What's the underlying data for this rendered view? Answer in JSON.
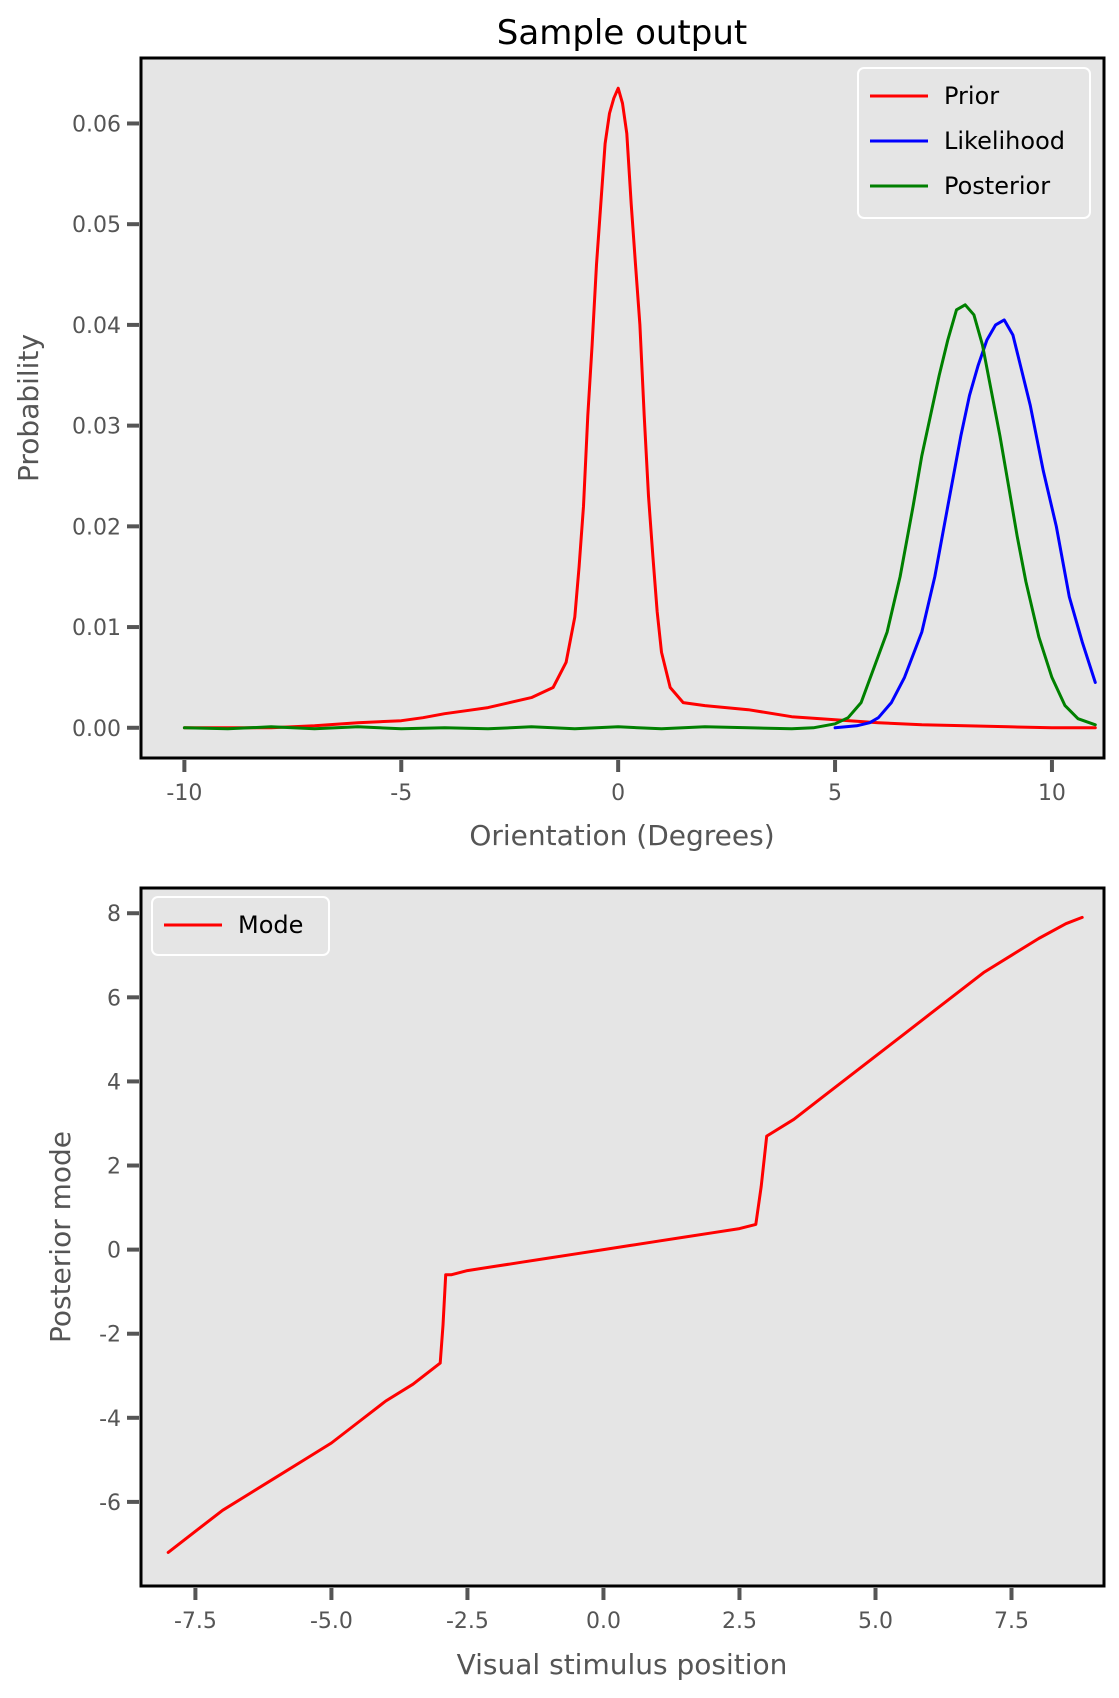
{
  "chart_data": [
    {
      "type": "line",
      "title": "Sample output",
      "xlabel": "Orientation (Degrees)",
      "ylabel": "Probability",
      "xlim": [
        -11,
        11.2
      ],
      "ylim": [
        -0.003,
        0.0665
      ],
      "xticks": [
        -10,
        -5,
        0,
        5,
        10
      ],
      "xtick_labels": [
        "-10",
        "-5",
        "0",
        "5",
        "10"
      ],
      "yticks": [
        0,
        0.01,
        0.02,
        0.03,
        0.04,
        0.05,
        0.06
      ],
      "ytick_labels": [
        "0.00",
        "0.01",
        "0.02",
        "0.03",
        "0.04",
        "0.05",
        "0.06"
      ],
      "grid": false,
      "legend_position": "top-right",
      "series": [
        {
          "name": "Prior",
          "color": "#ff0000",
          "x": [
            -10,
            -8,
            -7,
            -6,
            -5,
            -4.5,
            -4,
            -3.5,
            -3,
            -2.5,
            -2,
            -1.5,
            -1.2,
            -1,
            -0.9,
            -0.8,
            -0.7,
            -0.6,
            -0.5,
            -0.4,
            -0.3,
            -0.2,
            -0.1,
            0,
            0.1,
            0.2,
            0.3,
            0.4,
            0.5,
            0.6,
            0.7,
            0.8,
            0.9,
            1,
            1.2,
            1.5,
            2,
            3,
            4,
            5,
            6,
            7,
            8,
            9,
            10,
            11
          ],
          "y": [
            0,
            0,
            0.0002,
            0.0005,
            0.0007,
            0.001,
            0.0014,
            0.0017,
            0.002,
            0.0025,
            0.003,
            0.004,
            0.0065,
            0.011,
            0.016,
            0.022,
            0.031,
            0.038,
            0.046,
            0.052,
            0.058,
            0.061,
            0.0625,
            0.0635,
            0.062,
            0.059,
            0.052,
            0.046,
            0.04,
            0.031,
            0.023,
            0.017,
            0.0115,
            0.0075,
            0.004,
            0.0025,
            0.0022,
            0.0018,
            0.0011,
            0.0008,
            0.0005,
            0.0003,
            0.0002,
            0.0001,
            0,
            0
          ]
        },
        {
          "name": "Likelihood",
          "color": "#0000ff",
          "x": [
            5,
            5.5,
            5.8,
            6,
            6.3,
            6.6,
            7,
            7.3,
            7.6,
            7.9,
            8.1,
            8.3,
            8.5,
            8.7,
            8.9,
            9.1,
            9.3,
            9.5,
            9.8,
            10.1,
            10.4,
            10.7,
            11
          ],
          "y": [
            0,
            0.0002,
            0.0005,
            0.001,
            0.0025,
            0.005,
            0.0095,
            0.015,
            0.022,
            0.029,
            0.033,
            0.036,
            0.0385,
            0.04,
            0.0405,
            0.039,
            0.0355,
            0.032,
            0.0255,
            0.02,
            0.013,
            0.0085,
            0.0045
          ]
        },
        {
          "name": "Posterior",
          "color": "#008000",
          "x": [
            -10,
            -9,
            -8,
            -7,
            -6,
            -5,
            -4,
            -3,
            -2,
            -1,
            0,
            1,
            2,
            3,
            4,
            4.5,
            5,
            5.3,
            5.6,
            5.9,
            6.2,
            6.5,
            6.8,
            7,
            7.2,
            7.4,
            7.6,
            7.8,
            8,
            8.2,
            8.4,
            8.6,
            8.8,
            9,
            9.2,
            9.4,
            9.7,
            10,
            10.3,
            10.6,
            11
          ],
          "y": [
            0,
            -0.0001,
            0.0001,
            -0.0001,
            0.0001,
            -0.0001,
            0,
            -0.0001,
            0.0001,
            -0.0001,
            0.0001,
            -0.0001,
            0.0001,
            0,
            -0.0001,
            0,
            0.0004,
            0.001,
            0.0025,
            0.006,
            0.0095,
            0.015,
            0.022,
            0.027,
            0.031,
            0.035,
            0.0385,
            0.0415,
            0.042,
            0.041,
            0.038,
            0.0335,
            0.029,
            0.024,
            0.019,
            0.0145,
            0.009,
            0.005,
            0.0022,
            0.0009,
            0.0003
          ]
        }
      ]
    },
    {
      "type": "line",
      "title": "",
      "xlabel": "Visual stimulus position",
      "ylabel": "Posterior mode",
      "xlim": [
        -8.5,
        9.2
      ],
      "ylim": [
        -8,
        8.6
      ],
      "xticks": [
        -7.5,
        -5,
        -2.5,
        0,
        2.5,
        5,
        7.5
      ],
      "xtick_labels": [
        "-7.5",
        "-5.0",
        "-2.5",
        "0.0",
        "2.5",
        "5.0",
        "7.5"
      ],
      "yticks": [
        -6,
        -4,
        -2,
        0,
        2,
        4,
        6,
        8
      ],
      "ytick_labels": [
        "-6",
        "-4",
        "-2",
        "0",
        "2",
        "4",
        "6",
        "8"
      ],
      "grid": false,
      "legend_position": "top-left",
      "series": [
        {
          "name": "Mode",
          "color": "#ff0000",
          "x": [
            -8,
            -7.5,
            -7,
            -6.5,
            -6,
            -5.5,
            -5,
            -4.5,
            -4,
            -3.5,
            -3,
            -2.95,
            -2.9,
            -2.8,
            -2.5,
            -2,
            -1.5,
            -1,
            -0.5,
            0,
            0.5,
            1,
            1.5,
            2,
            2.5,
            2.8,
            2.9,
            3,
            3.5,
            4,
            4.5,
            5,
            5.5,
            6,
            6.5,
            7,
            7.5,
            8,
            8.5,
            8.8
          ],
          "y": [
            -7.2,
            -6.7,
            -6.2,
            -5.8,
            -5.4,
            -5,
            -4.6,
            -4.1,
            -3.6,
            -3.2,
            -2.7,
            -1.8,
            -0.6,
            -0.6,
            -0.5,
            -0.4,
            -0.3,
            -0.2,
            -0.1,
            0,
            0.1,
            0.2,
            0.3,
            0.4,
            0.5,
            0.6,
            1.5,
            2.7,
            3.1,
            3.6,
            4.1,
            4.6,
            5.1,
            5.6,
            6.1,
            6.6,
            7.0,
            7.4,
            7.75,
            7.9
          ]
        }
      ]
    }
  ]
}
